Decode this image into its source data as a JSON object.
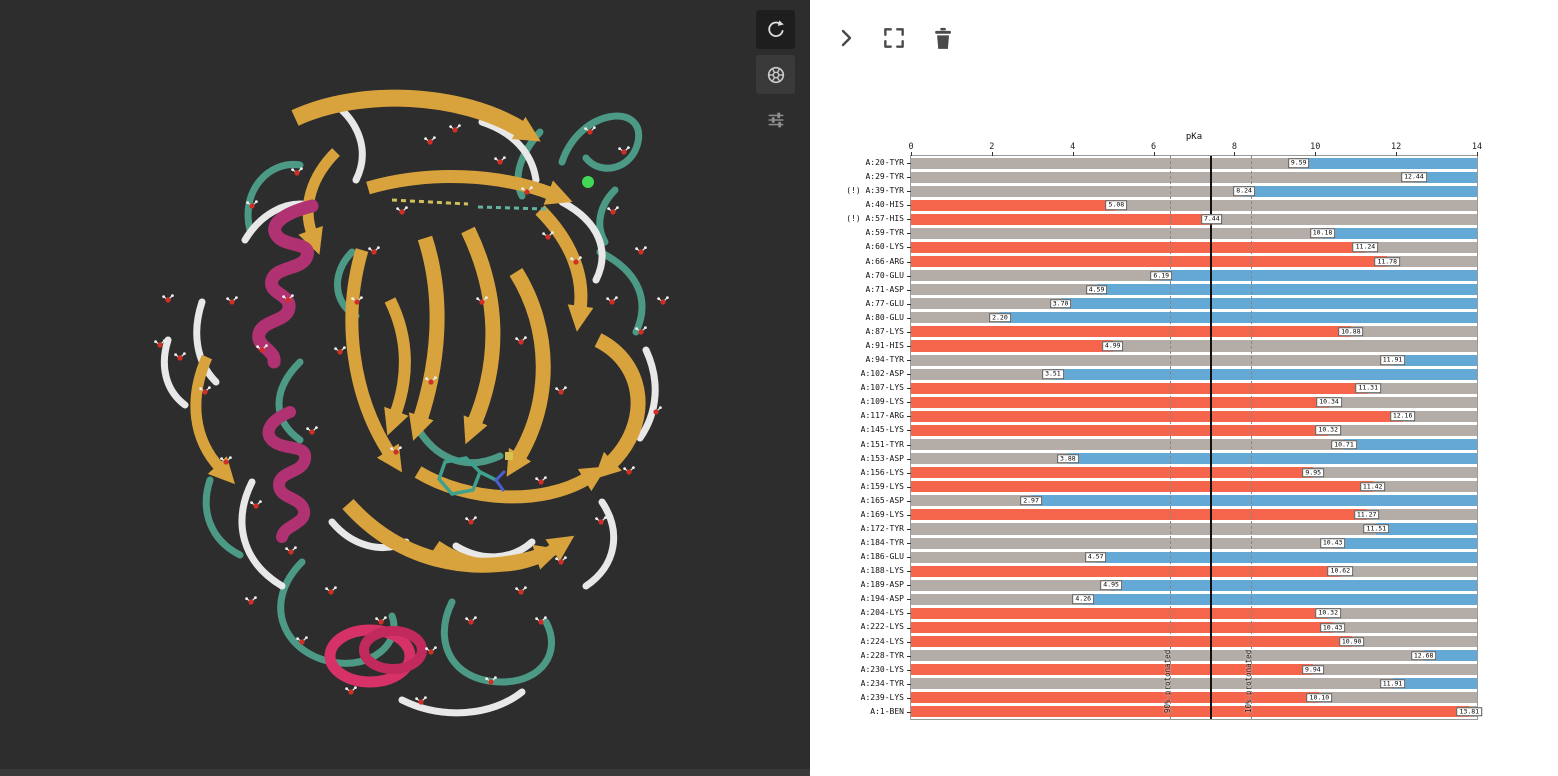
{
  "left_viewer": {
    "buttons": [
      {
        "name": "reload-view",
        "icon": "refresh-icon"
      },
      {
        "name": "screenshot",
        "icon": "aperture-icon"
      },
      {
        "name": "display-settings",
        "icon": "sliders-icon"
      }
    ]
  },
  "right_panel": {
    "toolbar_icons": [
      "chevron-right",
      "fullscreen",
      "trash"
    ]
  },
  "chart_data": {
    "type": "bar",
    "orientation": "horizontal",
    "title": "pKa",
    "xlabel": "pKa",
    "xlim": [
      0,
      14
    ],
    "x_ticks": [
      0,
      2,
      4,
      6,
      8,
      10,
      12,
      14
    ],
    "ph_marker": 7.4,
    "guides": [
      {
        "x": 6.4,
        "label": "90% protonated"
      },
      {
        "x": 8.4,
        "label": "10% protonated"
      }
    ],
    "colors": {
      "protonated": "#f4654c",
      "deprotonated": "#64a9d6",
      "neutral": "#b4aca6"
    },
    "rows": [
      {
        "label": "A:20-TYR",
        "pka": 9.59,
        "display": "9.59",
        "state": "acid"
      },
      {
        "label": "A:29-TYR",
        "pka": 12.44,
        "display": "12.44",
        "state": "acid"
      },
      {
        "label": "(!) A:39-TYR",
        "pka": 8.24,
        "display": "8.24",
        "state": "acid"
      },
      {
        "label": "A:40-HIS",
        "pka": 5.08,
        "display": "5.08",
        "state": "base"
      },
      {
        "label": "(!) A:57-HIS",
        "pka": 7.44,
        "display": "7.44",
        "state": "base"
      },
      {
        "label": "A:59-TYR",
        "pka": 10.18,
        "display": "10.18",
        "state": "acid"
      },
      {
        "label": "A:60-LYS",
        "pka": 11.24,
        "display": "11.24",
        "state": "base"
      },
      {
        "label": "A:66-ARG",
        "pka": 11.78,
        "display": "11.78",
        "state": "base"
      },
      {
        "label": "A:70-GLU",
        "pka": 6.19,
        "display": "6.19",
        "state": "acid"
      },
      {
        "label": "A:71-ASP",
        "pka": 4.59,
        "display": "4.59",
        "state": "acid"
      },
      {
        "label": "A:77-GLU",
        "pka": 3.7,
        "display": "3.70",
        "state": "acid"
      },
      {
        "label": "A:80-GLU",
        "pka": 2.2,
        "display": "2.20",
        "state": "acid"
      },
      {
        "label": "A:87-LYS",
        "pka": 10.88,
        "display": "10.88",
        "state": "base"
      },
      {
        "label": "A:91-HIS",
        "pka": 4.99,
        "display": "4.99",
        "state": "base"
      },
      {
        "label": "A:94-TYR",
        "pka": 11.91,
        "display": "11.91",
        "state": "acid"
      },
      {
        "label": "A:102-ASP",
        "pka": 3.51,
        "display": "3.51",
        "state": "acid"
      },
      {
        "label": "A:107-LYS",
        "pka": 11.31,
        "display": "11.31",
        "state": "base"
      },
      {
        "label": "A:109-LYS",
        "pka": 10.34,
        "display": "10.34",
        "state": "base"
      },
      {
        "label": "A:117-ARG",
        "pka": 12.16,
        "display": "12.16",
        "state": "base"
      },
      {
        "label": "A:145-LYS",
        "pka": 10.32,
        "display": "10.32",
        "state": "base"
      },
      {
        "label": "A:151-TYR",
        "pka": 10.71,
        "display": "10.71",
        "state": "acid"
      },
      {
        "label": "A:153-ASP",
        "pka": 3.88,
        "display": "3.88",
        "state": "acid"
      },
      {
        "label": "A:156-LYS",
        "pka": 9.95,
        "display": "9.95",
        "state": "base"
      },
      {
        "label": "A:159-LYS",
        "pka": 11.42,
        "display": "11.42",
        "state": "base"
      },
      {
        "label": "A:165-ASP",
        "pka": 2.97,
        "display": "2.97",
        "state": "acid"
      },
      {
        "label": "A:169-LYS",
        "pka": 11.27,
        "display": "11.27",
        "state": "base"
      },
      {
        "label": "A:172-TYR",
        "pka": 11.51,
        "display": "11.51",
        "state": "acid"
      },
      {
        "label": "A:184-TYR",
        "pka": 10.43,
        "display": "10.43",
        "state": "acid"
      },
      {
        "label": "A:186-GLU",
        "pka": 4.57,
        "display": "4.57",
        "state": "acid"
      },
      {
        "label": "A:188-LYS",
        "pka": 10.62,
        "display": "10.62",
        "state": "base"
      },
      {
        "label": "A:189-ASP",
        "pka": 4.95,
        "display": "4.95",
        "state": "acid"
      },
      {
        "label": "A:194-ASP",
        "pka": 4.26,
        "display": "4.26",
        "state": "acid"
      },
      {
        "label": "A:204-LYS",
        "pka": 10.32,
        "display": "10.32",
        "state": "base"
      },
      {
        "label": "A:222-LYS",
        "pka": 10.43,
        "display": "10.43",
        "state": "base"
      },
      {
        "label": "A:224-LYS",
        "pka": 10.9,
        "display": "10.90",
        "state": "base"
      },
      {
        "label": "A:228-TYR",
        "pka": 12.68,
        "display": "12.68",
        "state": "acid"
      },
      {
        "label": "A:230-LYS",
        "pka": 9.94,
        "display": "9.94",
        "state": "base"
      },
      {
        "label": "A:234-TYR",
        "pka": 11.91,
        "display": "11.91",
        "state": "acid"
      },
      {
        "label": "A:239-LYS",
        "pka": 10.1,
        "display": "10.10",
        "state": "base"
      },
      {
        "label": "A:1-BEN",
        "pka": 13.81,
        "display": "13.81",
        "state": "base"
      }
    ]
  }
}
